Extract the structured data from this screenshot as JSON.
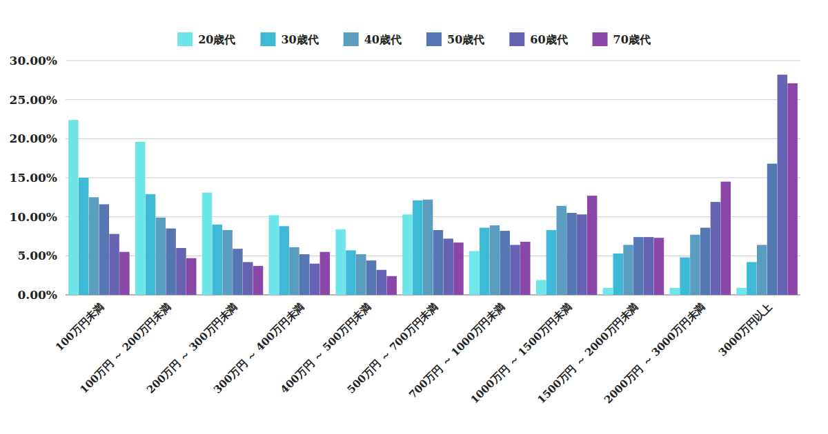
{
  "chart_data": {
    "type": "bar",
    "categories": [
      "100万円未満",
      "100万円 ～ 200万円未満",
      "200万円 ～ 300万円未満",
      "300万円 ～ 400万円未満",
      "400万円 ～ 500万円未満",
      "500万円 ～ 700万円未満",
      "700万円 ～ 1000万円未満",
      "1000万円 ～ 1500万円未満",
      "1500万円 ～ 2000万円未満",
      "2000万円 ～ 3000万円未満",
      "3000万円以上"
    ],
    "series": [
      {
        "name": "20歳代",
        "color": "#6ee5e8",
        "values": [
          22.4,
          19.6,
          13.1,
          10.2,
          8.4,
          10.3,
          5.6,
          1.9,
          0.9,
          0.9,
          0.9
        ]
      },
      {
        "name": "30歳代",
        "color": "#3fbad6",
        "values": [
          15.0,
          12.9,
          9.0,
          8.8,
          5.7,
          12.1,
          8.6,
          8.3,
          5.3,
          4.8,
          4.2
        ]
      },
      {
        "name": "40歳代",
        "color": "#5a9dbf",
        "values": [
          12.5,
          9.9,
          8.3,
          6.1,
          5.2,
          12.2,
          8.9,
          11.4,
          6.4,
          7.7,
          6.4
        ]
      },
      {
        "name": "50歳代",
        "color": "#5577b2",
        "values": [
          11.6,
          8.5,
          5.9,
          5.2,
          4.4,
          8.3,
          8.2,
          10.5,
          7.4,
          8.6,
          16.8
        ]
      },
      {
        "name": "60歳代",
        "color": "#6563b2",
        "values": [
          7.8,
          6.0,
          4.2,
          4.0,
          3.2,
          7.2,
          6.4,
          10.3,
          7.4,
          11.9,
          28.2
        ]
      },
      {
        "name": "70歳代",
        "color": "#8b47a8",
        "values": [
          5.5,
          4.7,
          3.7,
          5.5,
          2.4,
          6.7,
          6.8,
          12.7,
          7.3,
          14.5,
          27.1
        ]
      }
    ],
    "ylim": [
      0,
      30
    ],
    "yticks": [
      {
        "value": 0,
        "label": "0.00%"
      },
      {
        "value": 5,
        "label": "5.00%"
      },
      {
        "value": 10,
        "label": "10.00%"
      },
      {
        "value": 15,
        "label": "15.00%"
      },
      {
        "value": 20,
        "label": "20.00%"
      },
      {
        "value": 25,
        "label": "25.00%"
      },
      {
        "value": 30,
        "label": "30.00%"
      }
    ],
    "grid": true,
    "legend": "top"
  }
}
